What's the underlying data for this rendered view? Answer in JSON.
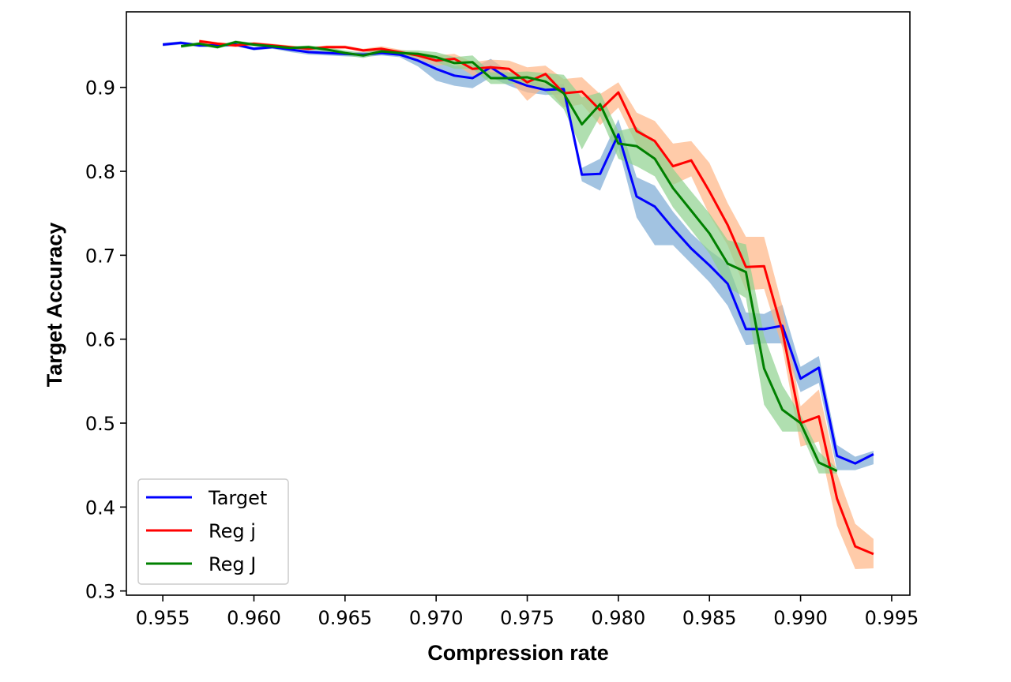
{
  "chart_data": {
    "type": "line",
    "title": "",
    "xlabel": "Compression rate",
    "ylabel": "Target Accuracy",
    "xlim": [
      0.953,
      0.996
    ],
    "ylim": [
      0.295,
      0.99
    ],
    "xticks": [
      0.955,
      0.96,
      0.965,
      0.97,
      0.975,
      0.98,
      0.985,
      0.99,
      0.995
    ],
    "xtick_labels": [
      "0.955",
      "0.960",
      "0.965",
      "0.970",
      "0.975",
      "0.980",
      "0.985",
      "0.990",
      "0.995"
    ],
    "yticks": [
      0.3,
      0.4,
      0.5,
      0.6,
      0.7,
      0.8,
      0.9
    ],
    "ytick_labels": [
      "0.3",
      "0.4",
      "0.5",
      "0.6",
      "0.7",
      "0.8",
      "0.9"
    ],
    "grid": false,
    "legend_position": "lower-left",
    "series": [
      {
        "name": "Target",
        "color": "#0000ff",
        "band_color": "#7aaad4",
        "x": [
          0.955,
          0.956,
          0.957,
          0.958,
          0.959,
          0.96,
          0.961,
          0.962,
          0.963,
          0.964,
          0.965,
          0.966,
          0.967,
          0.968,
          0.969,
          0.97,
          0.971,
          0.972,
          0.973,
          0.974,
          0.975,
          0.976,
          0.977,
          0.978,
          0.979,
          0.98,
          0.981,
          0.982,
          0.983,
          0.984,
          0.985,
          0.986,
          0.987,
          0.988,
          0.989,
          0.99,
          0.991,
          0.992,
          0.993,
          0.994
        ],
        "y": [
          0.951,
          0.953,
          0.95,
          0.95,
          0.951,
          0.946,
          0.948,
          0.945,
          0.942,
          0.941,
          0.94,
          0.939,
          0.941,
          0.939,
          0.932,
          0.922,
          0.914,
          0.911,
          0.924,
          0.91,
          0.902,
          0.897,
          0.898,
          0.796,
          0.797,
          0.844,
          0.77,
          0.758,
          0.732,
          0.708,
          0.688,
          0.666,
          0.612,
          0.612,
          0.616,
          0.553,
          0.566,
          0.461,
          0.452,
          0.463
        ],
        "y_low": [
          0.949,
          0.951,
          0.948,
          0.948,
          0.949,
          0.944,
          0.946,
          0.942,
          0.939,
          0.938,
          0.937,
          0.936,
          0.938,
          0.936,
          0.925,
          0.908,
          0.902,
          0.899,
          0.912,
          0.902,
          0.894,
          0.891,
          0.892,
          0.788,
          0.777,
          0.828,
          0.745,
          0.712,
          0.712,
          0.69,
          0.668,
          0.64,
          0.593,
          0.595,
          0.595,
          0.537,
          0.548,
          0.444,
          0.444,
          0.451
        ],
        "y_high": [
          0.953,
          0.955,
          0.952,
          0.952,
          0.953,
          0.948,
          0.95,
          0.948,
          0.945,
          0.944,
          0.943,
          0.942,
          0.944,
          0.942,
          0.939,
          0.934,
          0.926,
          0.923,
          0.934,
          0.918,
          0.91,
          0.903,
          0.904,
          0.804,
          0.815,
          0.862,
          0.793,
          0.783,
          0.752,
          0.726,
          0.706,
          0.69,
          0.632,
          0.63,
          0.641,
          0.567,
          0.58,
          0.474,
          0.46,
          0.467
        ]
      },
      {
        "name": "Reg j",
        "color": "#ff0000",
        "band_color": "#ffb584",
        "x": [
          0.957,
          0.958,
          0.959,
          0.96,
          0.961,
          0.962,
          0.963,
          0.964,
          0.965,
          0.966,
          0.967,
          0.968,
          0.969,
          0.97,
          0.971,
          0.972,
          0.973,
          0.974,
          0.975,
          0.976,
          0.977,
          0.978,
          0.979,
          0.98,
          0.981,
          0.982,
          0.983,
          0.984,
          0.985,
          0.986,
          0.987,
          0.988,
          0.989,
          0.99,
          0.991,
          0.992,
          0.993,
          0.994
        ],
        "y": [
          0.955,
          0.952,
          0.95,
          0.952,
          0.95,
          0.948,
          0.946,
          0.948,
          0.948,
          0.944,
          0.946,
          0.942,
          0.938,
          0.932,
          0.934,
          0.922,
          0.924,
          0.922,
          0.906,
          0.916,
          0.893,
          0.895,
          0.873,
          0.894,
          0.848,
          0.836,
          0.806,
          0.813,
          0.776,
          0.736,
          0.686,
          0.687,
          0.61,
          0.5,
          0.508,
          0.41,
          0.353,
          0.344
        ],
        "y_low": [
          0.953,
          0.95,
          0.948,
          0.95,
          0.948,
          0.946,
          0.944,
          0.946,
          0.946,
          0.942,
          0.943,
          0.939,
          0.934,
          0.926,
          0.928,
          0.914,
          0.915,
          0.91,
          0.884,
          0.902,
          0.876,
          0.88,
          0.855,
          0.876,
          0.832,
          0.814,
          0.784,
          0.794,
          0.748,
          0.712,
          0.658,
          0.66,
          0.59,
          0.472,
          0.478,
          0.378,
          0.326,
          0.327
        ],
        "y_high": [
          0.957,
          0.954,
          0.952,
          0.954,
          0.952,
          0.95,
          0.948,
          0.95,
          0.95,
          0.946,
          0.949,
          0.945,
          0.942,
          0.938,
          0.94,
          0.93,
          0.933,
          0.932,
          0.924,
          0.926,
          0.91,
          0.912,
          0.892,
          0.906,
          0.87,
          0.86,
          0.833,
          0.836,
          0.81,
          0.762,
          0.722,
          0.722,
          0.64,
          0.52,
          0.54,
          0.44,
          0.38,
          0.362
        ]
      },
      {
        "name": "Reg J",
        "color": "#008000",
        "band_color": "#8fd18f",
        "x": [
          0.956,
          0.957,
          0.958,
          0.959,
          0.96,
          0.961,
          0.962,
          0.963,
          0.964,
          0.965,
          0.966,
          0.967,
          0.968,
          0.969,
          0.97,
          0.971,
          0.972,
          0.973,
          0.974,
          0.975,
          0.976,
          0.977,
          0.978,
          0.979,
          0.98,
          0.981,
          0.982,
          0.983,
          0.984,
          0.985,
          0.986,
          0.987,
          0.988,
          0.989,
          0.99,
          0.991,
          0.992
        ],
        "y": [
          0.949,
          0.952,
          0.948,
          0.954,
          0.951,
          0.949,
          0.947,
          0.948,
          0.945,
          0.941,
          0.938,
          0.943,
          0.941,
          0.94,
          0.936,
          0.929,
          0.93,
          0.911,
          0.911,
          0.912,
          0.907,
          0.893,
          0.856,
          0.88,
          0.833,
          0.83,
          0.815,
          0.78,
          0.753,
          0.726,
          0.69,
          0.68,
          0.565,
          0.516,
          0.5,
          0.453,
          0.443
        ],
        "y_low": [
          0.947,
          0.95,
          0.946,
          0.952,
          0.949,
          0.947,
          0.945,
          0.946,
          0.942,
          0.938,
          0.935,
          0.94,
          0.938,
          0.936,
          0.93,
          0.922,
          0.922,
          0.904,
          0.904,
          0.905,
          0.895,
          0.874,
          0.826,
          0.866,
          0.815,
          0.806,
          0.794,
          0.757,
          0.73,
          0.702,
          0.662,
          0.649,
          0.522,
          0.49,
          0.49,
          0.44,
          0.44
        ],
        "y_high": [
          0.951,
          0.954,
          0.95,
          0.956,
          0.953,
          0.951,
          0.949,
          0.95,
          0.948,
          0.944,
          0.941,
          0.946,
          0.944,
          0.944,
          0.942,
          0.936,
          0.938,
          0.918,
          0.918,
          0.919,
          0.917,
          0.915,
          0.888,
          0.894,
          0.848,
          0.853,
          0.834,
          0.803,
          0.776,
          0.75,
          0.718,
          0.713,
          0.604,
          0.545,
          0.51,
          0.466,
          0.446
        ]
      }
    ]
  }
}
